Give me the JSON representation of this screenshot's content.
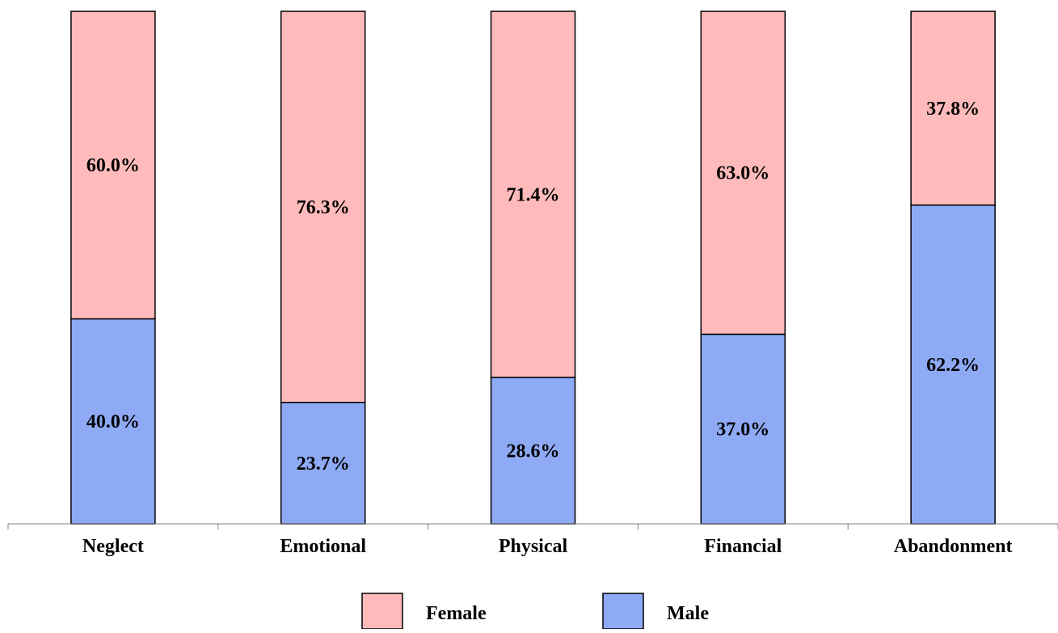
{
  "chart_data": {
    "type": "bar",
    "stacked": true,
    "percent_stacked": true,
    "categories": [
      "Neglect",
      "Emotional",
      "Physical",
      "Financial",
      "Abandonment"
    ],
    "series": [
      {
        "name": "Male",
        "values": [
          40.0,
          23.7,
          28.6,
          37.0,
          62.2
        ],
        "labels": [
          "40.0%",
          "23.7%",
          "28.6%",
          "37.0%",
          "62.2%"
        ],
        "color": "#8eaaf5"
      },
      {
        "name": "Female",
        "values": [
          60.0,
          76.3,
          71.4,
          63.0,
          37.8
        ],
        "labels": [
          "60.0%",
          "76.3%",
          "71.4%",
          "63.0%",
          "37.8%"
        ],
        "color": "#ffbbbb"
      }
    ],
    "ylim": [
      0,
      100
    ],
    "grid": false,
    "legend": {
      "position": "bottom",
      "entries": [
        "Female",
        "Male"
      ]
    },
    "bar_edge_color": "#000000"
  }
}
